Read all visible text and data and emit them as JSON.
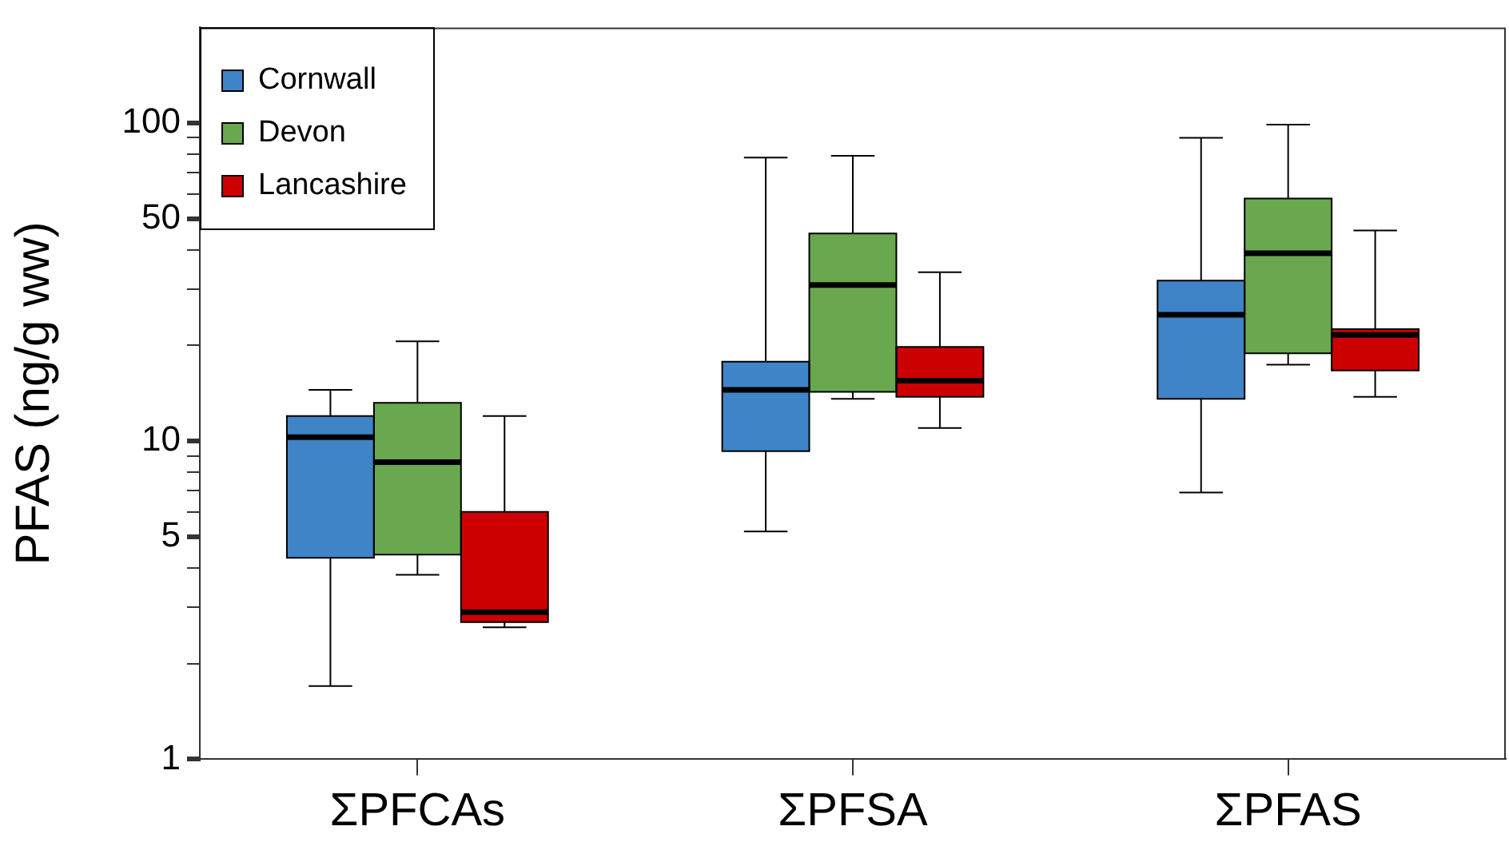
{
  "chart_data": {
    "type": "box",
    "ylabel": "PFAS (ng/g ww)",
    "categories": [
      "ΣPFCAs",
      "ΣPFSA",
      "ΣPFAS"
    ],
    "log": true,
    "ylim": [
      1,
      200
    ],
    "yticks": [
      1,
      {
        "value": 2,
        "label": null
      },
      {
        "value": 3,
        "label": null
      },
      {
        "value": 4,
        "label": null
      },
      5,
      {
        "value": 6,
        "label": null
      },
      {
        "value": 7,
        "label": null
      },
      {
        "value": 8,
        "label": null
      },
      {
        "value": 9,
        "label": null
      },
      10,
      {
        "value": 20,
        "label": null
      },
      {
        "value": 30,
        "label": null
      },
      {
        "value": 40,
        "label": null
      },
      50,
      {
        "value": 60,
        "label": null
      },
      {
        "value": 70,
        "label": null
      },
      {
        "value": 80,
        "label": null
      },
      {
        "value": 90,
        "label": null
      },
      100
    ],
    "grid": false,
    "legend": "top left",
    "series": [
      {
        "name": "Cornwall",
        "color": "#3e84c6",
        "boxes": [
          {
            "low": 1.7,
            "q1": 4.3,
            "median": 10.3,
            "q3": 12,
            "high": 14.5
          },
          {
            "low": 5.2,
            "q1": 9.3,
            "median": 14.5,
            "q3": 17.8,
            "high": 78
          },
          {
            "low": 6.9,
            "q1": 13.6,
            "median": 25,
            "q3": 32,
            "high": 90
          }
        ]
      },
      {
        "name": "Devon",
        "color": "#6aa84f",
        "boxes": [
          {
            "low": 3.8,
            "q1": 4.4,
            "median": 8.6,
            "q3": 13.2,
            "high": 20.6
          },
          {
            "low": 13.6,
            "q1": 14.3,
            "median": 31,
            "q3": 45,
            "high": 79
          },
          {
            "low": 17.4,
            "q1": 18.9,
            "median": 39,
            "q3": 58,
            "high": 99
          }
        ]
      },
      {
        "name": "Lancashire",
        "color": "#cc0000",
        "boxes": [
          {
            "low": 2.6,
            "q1": 2.7,
            "median": 2.9,
            "q3": 6,
            "high": 12
          },
          {
            "low": 11,
            "q1": 13.8,
            "median": 15.5,
            "q3": 19.8,
            "high": 34
          },
          {
            "low": 13.8,
            "q1": 16.7,
            "median": 21.6,
            "q3": 22.5,
            "high": 46
          }
        ]
      }
    ]
  }
}
